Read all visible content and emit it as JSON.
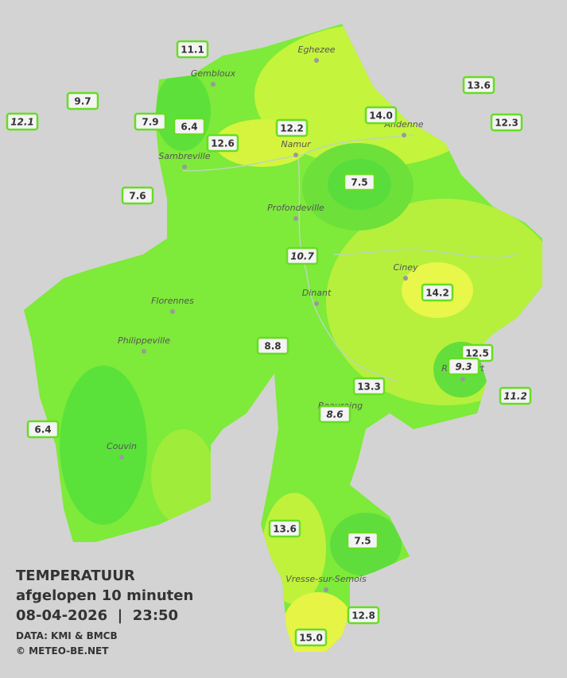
{
  "title": {
    "line1": "TEMPERATUUR",
    "line2": "afgelopen 10 minuten",
    "line3": "08-04-2026  |  23:50",
    "source": "DATA: KMI & BMCB",
    "copyright": "© METEO-BE.NET"
  },
  "cities": [
    "Eghezee",
    "Gembloux",
    "Andenne",
    "Namur",
    "Sambreville",
    "Profondeville",
    "Ciney",
    "Dinant",
    "Florennes",
    "Philippeville",
    "Rochefort",
    "Beauraing",
    "Couvin",
    "Vresse-sur-Semois"
  ],
  "stations": [
    {
      "value": "11.1"
    },
    {
      "value": "9.7"
    },
    {
      "value": "12.1",
      "italic": true
    },
    {
      "value": "7.9"
    },
    {
      "value": "6.4"
    },
    {
      "value": "12.6"
    },
    {
      "value": "12.2"
    },
    {
      "value": "14.0"
    },
    {
      "value": "13.6"
    },
    {
      "value": "12.3"
    },
    {
      "value": "7.6"
    },
    {
      "value": "7.5"
    },
    {
      "value": "10.7",
      "italic": true
    },
    {
      "value": "14.2"
    },
    {
      "value": "8.8"
    },
    {
      "value": "12.5"
    },
    {
      "value": "9.3",
      "italic": true
    },
    {
      "value": "13.3"
    },
    {
      "value": "11.2",
      "italic": true
    },
    {
      "value": "8.6",
      "italic": true
    },
    {
      "value": "6.4"
    },
    {
      "value": "13.6"
    },
    {
      "value": "7.5"
    },
    {
      "value": "12.8"
    },
    {
      "value": "15.0"
    }
  ]
}
